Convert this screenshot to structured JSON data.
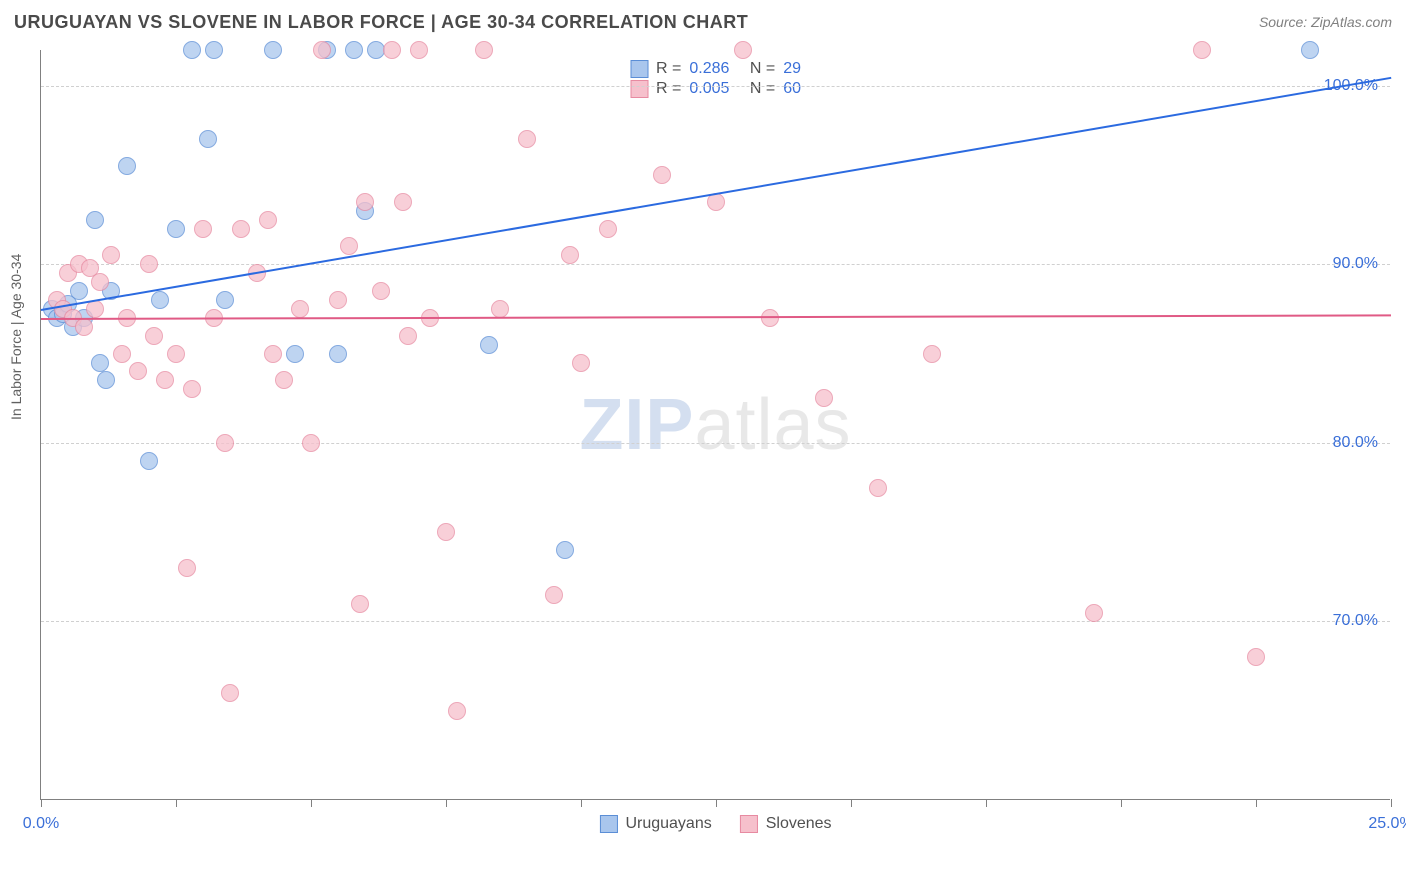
{
  "header": {
    "title": "URUGUAYAN VS SLOVENE IN LABOR FORCE | AGE 30-34 CORRELATION CHART",
    "source_prefix": "Source: ",
    "source_name": "ZipAtlas.com"
  },
  "chart": {
    "type": "scatter",
    "y_label": "In Labor Force | Age 30-34",
    "xlim": [
      0,
      25
    ],
    "ylim": [
      60,
      102
    ],
    "x_ticks": [
      0,
      2.5,
      5,
      7.5,
      10,
      12.5,
      15,
      17.5,
      20,
      22.5,
      25
    ],
    "x_tick_labels": {
      "0": "0.0%",
      "25": "25.0%"
    },
    "y_ticks": [
      70,
      80,
      90,
      100
    ],
    "y_tick_labels": {
      "70": "70.0%",
      "80": "80.0%",
      "90": "90.0%",
      "100": "100.0%"
    },
    "background_color": "#ffffff",
    "grid_color": "#d0d0d0",
    "axis_color": "#808080",
    "tick_label_color": "#3a6fd8",
    "watermark": {
      "zip": "ZIP",
      "atlas": "atlas"
    },
    "series": [
      {
        "name": "Uruguayans",
        "fill_color": "#a9c6ed",
        "border_color": "#5b8ed6",
        "trend_color": "#2b6ae0",
        "r_value": "0.286",
        "n_value": "29",
        "trend": {
          "x1": 0,
          "y1": 87.5,
          "x2": 25,
          "y2": 100.5
        },
        "points": [
          [
            0.2,
            87.5
          ],
          [
            0.3,
            87.0
          ],
          [
            0.4,
            87.2
          ],
          [
            0.5,
            87.8
          ],
          [
            0.6,
            86.5
          ],
          [
            0.7,
            88.5
          ],
          [
            0.8,
            87.0
          ],
          [
            1.0,
            92.5
          ],
          [
            1.1,
            84.5
          ],
          [
            1.2,
            83.5
          ],
          [
            1.3,
            88.5
          ],
          [
            1.6,
            95.5
          ],
          [
            2.0,
            79.0
          ],
          [
            2.2,
            88.0
          ],
          [
            2.5,
            92.0
          ],
          [
            2.8,
            102.0
          ],
          [
            3.1,
            97.0
          ],
          [
            3.2,
            102.0
          ],
          [
            3.4,
            88.0
          ],
          [
            4.3,
            102.0
          ],
          [
            4.7,
            85.0
          ],
          [
            5.3,
            102.0
          ],
          [
            5.5,
            85.0
          ],
          [
            5.8,
            102.0
          ],
          [
            6.0,
            93.0
          ],
          [
            6.2,
            102.0
          ],
          [
            8.3,
            85.5
          ],
          [
            9.7,
            74.0
          ],
          [
            23.5,
            102.0
          ]
        ]
      },
      {
        "name": "Slovenes",
        "fill_color": "#f6c0cc",
        "border_color": "#e78aa1",
        "trend_color": "#e05a85",
        "r_value": "0.005",
        "n_value": "60",
        "trend": {
          "x1": 0,
          "y1": 87.0,
          "x2": 25,
          "y2": 87.2
        },
        "points": [
          [
            0.3,
            88.0
          ],
          [
            0.4,
            87.5
          ],
          [
            0.5,
            89.5
          ],
          [
            0.6,
            87.0
          ],
          [
            0.7,
            90.0
          ],
          [
            0.8,
            86.5
          ],
          [
            0.9,
            89.8
          ],
          [
            1.0,
            87.5
          ],
          [
            1.1,
            89.0
          ],
          [
            1.3,
            90.5
          ],
          [
            1.5,
            85.0
          ],
          [
            1.6,
            87.0
          ],
          [
            1.8,
            84.0
          ],
          [
            2.0,
            90.0
          ],
          [
            2.1,
            86.0
          ],
          [
            2.3,
            83.5
          ],
          [
            2.5,
            85.0
          ],
          [
            2.7,
            73.0
          ],
          [
            2.8,
            83.0
          ],
          [
            3.0,
            92.0
          ],
          [
            3.2,
            87.0
          ],
          [
            3.4,
            80.0
          ],
          [
            3.5,
            66.0
          ],
          [
            3.7,
            92.0
          ],
          [
            4.0,
            89.5
          ],
          [
            4.2,
            92.5
          ],
          [
            4.3,
            85.0
          ],
          [
            4.5,
            83.5
          ],
          [
            4.8,
            87.5
          ],
          [
            5.0,
            80.0
          ],
          [
            5.2,
            102.0
          ],
          [
            5.5,
            88.0
          ],
          [
            5.7,
            91.0
          ],
          [
            5.9,
            71.0
          ],
          [
            6.0,
            93.5
          ],
          [
            6.3,
            88.5
          ],
          [
            6.5,
            102.0
          ],
          [
            6.7,
            93.5
          ],
          [
            7.0,
            102.0
          ],
          [
            7.2,
            87.0
          ],
          [
            7.5,
            75.0
          ],
          [
            7.7,
            65.0
          ],
          [
            8.2,
            102.0
          ],
          [
            8.5,
            87.5
          ],
          [
            9.0,
            97.0
          ],
          [
            9.5,
            71.5
          ],
          [
            9.8,
            90.5
          ],
          [
            10.0,
            84.5
          ],
          [
            10.5,
            92.0
          ],
          [
            11.5,
            95.0
          ],
          [
            12.5,
            93.5
          ],
          [
            13.0,
            102.0
          ],
          [
            13.5,
            87.0
          ],
          [
            14.5,
            82.5
          ],
          [
            15.5,
            77.5
          ],
          [
            16.5,
            85.0
          ],
          [
            19.5,
            70.5
          ],
          [
            21.5,
            102.0
          ],
          [
            22.5,
            68.0
          ],
          [
            6.8,
            86.0
          ]
        ]
      }
    ],
    "legend_top": {
      "r_label": "R =",
      "n_label": "N ="
    },
    "legend_bottom_labels": [
      "Uruguayans",
      "Slovenes"
    ]
  }
}
